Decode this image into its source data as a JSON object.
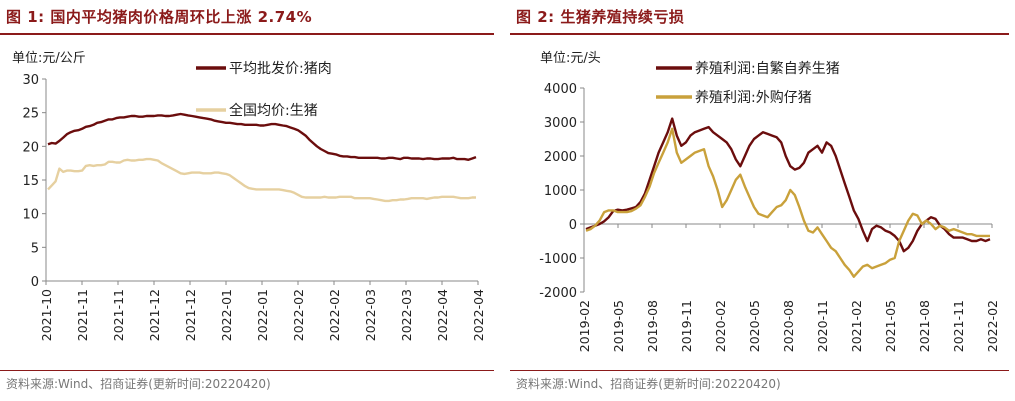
{
  "figures": [
    {
      "title": "图 1:  国内平均猪肉价格周环比上涨 2.74%",
      "source": "资料来源:Wind、招商证券(更新时间:20220420)"
    },
    {
      "title": "图 2:  生猪养殖持续亏损",
      "source": "资料来源:Wind、招商证券(更新时间:20220420)"
    }
  ],
  "colors": {
    "series_dark": "#6b0d0d",
    "series_light": "#e6d0a0",
    "series_gold": "#c9a13b",
    "title_red": "#8b1a1a"
  },
  "chart_data": [
    {
      "type": "line",
      "unit_label": "单位:元/公斤",
      "title": "",
      "xlabel": "",
      "ylabel": "",
      "ylim": [
        0,
        30
      ],
      "yticks": [
        "0",
        "5",
        "10",
        "15",
        "20",
        "25",
        "30"
      ],
      "xticks": [
        "2021-10",
        "2021-11",
        "2021-11",
        "2021-12",
        "2021-12",
        "2022-01",
        "2022-01",
        "2022-02",
        "2022-02",
        "2022-03",
        "2022-03",
        "2022-04",
        "2022-04"
      ],
      "legend_position": "top-center",
      "grid": false,
      "series": [
        {
          "name": "平均批发价:猪肉",
          "color": "#6b0d0d",
          "values": [
            20.3,
            20.5,
            20.4,
            20.8,
            21.3,
            21.8,
            22.1,
            22.3,
            22.4,
            22.6,
            22.9,
            23.0,
            23.2,
            23.5,
            23.6,
            23.8,
            24.0,
            24.0,
            24.2,
            24.3,
            24.3,
            24.4,
            24.5,
            24.5,
            24.4,
            24.4,
            24.5,
            24.5,
            24.5,
            24.6,
            24.6,
            24.5,
            24.5,
            24.6,
            24.7,
            24.8,
            24.7,
            24.6,
            24.5,
            24.4,
            24.3,
            24.2,
            24.1,
            24.0,
            23.8,
            23.7,
            23.6,
            23.5,
            23.5,
            23.4,
            23.3,
            23.3,
            23.2,
            23.2,
            23.2,
            23.2,
            23.1,
            23.1,
            23.2,
            23.3,
            23.3,
            23.2,
            23.1,
            23.0,
            22.8,
            22.6,
            22.4,
            22.0,
            21.6,
            21.0,
            20.5,
            20.0,
            19.6,
            19.3,
            19.0,
            18.9,
            18.8,
            18.6,
            18.5,
            18.5,
            18.4,
            18.4,
            18.3,
            18.3,
            18.3,
            18.3,
            18.3,
            18.3,
            18.2,
            18.2,
            18.3,
            18.3,
            18.2,
            18.1,
            18.3,
            18.3,
            18.2,
            18.2,
            18.2,
            18.1,
            18.2,
            18.2,
            18.1,
            18.1,
            18.2,
            18.2,
            18.2,
            18.3,
            18.1,
            18.1,
            18.1,
            18.0,
            18.2,
            18.4
          ]
        },
        {
          "name": "全国均价:生猪",
          "color": "#e6d0a0",
          "values": [
            13.6,
            14.2,
            14.8,
            16.7,
            16.2,
            16.4,
            16.4,
            16.3,
            16.3,
            16.4,
            17.1,
            17.2,
            17.1,
            17.2,
            17.2,
            17.3,
            17.7,
            17.7,
            17.6,
            17.6,
            17.9,
            18.0,
            17.9,
            17.9,
            18.0,
            18.0,
            18.1,
            18.1,
            18.0,
            17.9,
            17.5,
            17.2,
            16.9,
            16.6,
            16.3,
            16.0,
            15.9,
            16.0,
            16.1,
            16.1,
            16.1,
            16.0,
            16.0,
            16.0,
            16.1,
            16.1,
            16.0,
            15.9,
            15.7,
            15.3,
            14.9,
            14.5,
            14.1,
            13.8,
            13.7,
            13.6,
            13.6,
            13.6,
            13.6,
            13.6,
            13.6,
            13.6,
            13.5,
            13.4,
            13.3,
            13.1,
            12.8,
            12.5,
            12.4,
            12.4,
            12.4,
            12.4,
            12.4,
            12.5,
            12.4,
            12.4,
            12.4,
            12.5,
            12.5,
            12.5,
            12.5,
            12.3,
            12.3,
            12.3,
            12.3,
            12.3,
            12.2,
            12.1,
            12.0,
            11.9,
            11.9,
            12.0,
            12.0,
            12.1,
            12.1,
            12.2,
            12.3,
            12.3,
            12.3,
            12.3,
            12.2,
            12.3,
            12.4,
            12.4,
            12.5,
            12.5,
            12.5,
            12.5,
            12.4,
            12.3,
            12.3,
            12.3,
            12.4,
            12.4
          ]
        }
      ]
    },
    {
      "type": "line",
      "unit_label": "单位:元/头",
      "title": "",
      "xlabel": "",
      "ylabel": "",
      "ylim": [
        -2000,
        4000
      ],
      "yticks": [
        "-2000",
        "-1000",
        "0",
        "1000",
        "2000",
        "3000",
        "4000"
      ],
      "xticks": [
        "2019-02",
        "2019-05",
        "2019-08",
        "2019-11",
        "2020-02",
        "2020-05",
        "2020-08",
        "2020-11",
        "2021-02",
        "2021-05",
        "2021-08",
        "2021-11",
        "2022-02"
      ],
      "legend_position": "top-center",
      "grid": false,
      "series": [
        {
          "name": "养殖利润:自繁自养生猪",
          "color": "#6b0d0d",
          "values": [
            -150,
            -100,
            -50,
            0,
            80,
            200,
            380,
            420,
            400,
            420,
            460,
            500,
            650,
            900,
            1300,
            1700,
            2100,
            2400,
            2700,
            3100,
            2600,
            2300,
            2400,
            2600,
            2700,
            2750,
            2800,
            2850,
            2700,
            2600,
            2500,
            2400,
            2200,
            1900,
            1700,
            2000,
            2300,
            2500,
            2600,
            2700,
            2650,
            2600,
            2550,
            2400,
            2000,
            1700,
            1600,
            1650,
            1800,
            2100,
            2200,
            2300,
            2100,
            2400,
            2300,
            2000,
            1600,
            1200,
            800,
            400,
            150,
            -200,
            -500,
            -150,
            -50,
            -100,
            -200,
            -250,
            -350,
            -500,
            -800,
            -700,
            -500,
            -200,
            0,
            100,
            200,
            150,
            -50,
            -150,
            -300,
            -400,
            -400,
            -400,
            -450,
            -500,
            -500,
            -450,
            -500,
            -450
          ]
        },
        {
          "name": "养殖利润:外购仔猪",
          "color": "#c9a13b",
          "values": [
            -200,
            -150,
            -50,
            100,
            350,
            400,
            400,
            350,
            350,
            350,
            380,
            450,
            550,
            800,
            1100,
            1500,
            1800,
            2100,
            2400,
            2800,
            2100,
            1800,
            1900,
            2000,
            2100,
            2150,
            2200,
            1700,
            1400,
            1000,
            500,
            700,
            1000,
            1300,
            1450,
            1100,
            800,
            500,
            300,
            250,
            200,
            350,
            500,
            550,
            700,
            1000,
            850,
            500,
            100,
            -200,
            -250,
            -100,
            -300,
            -500,
            -700,
            -800,
            -1000,
            -1200,
            -1350,
            -1550,
            -1400,
            -1250,
            -1200,
            -1300,
            -1250,
            -1200,
            -1150,
            -1050,
            -1000,
            -500,
            -200,
            100,
            300,
            250,
            0,
            100,
            0,
            -150,
            -50,
            -100,
            -200,
            -150,
            -200,
            -250,
            -300,
            -300,
            -350,
            -350,
            -350,
            -350
          ]
        }
      ]
    }
  ]
}
